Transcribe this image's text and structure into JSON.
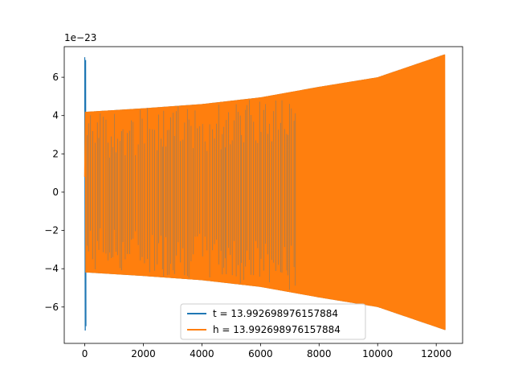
{
  "chart_data": {
    "type": "line",
    "title": "",
    "xlabel": "",
    "ylabel": "",
    "y_offset_label": "1e−23",
    "xlim": [
      -700,
      12900
    ],
    "ylim": [
      -7.9,
      7.6
    ],
    "x_ticks": [
      0,
      2000,
      4000,
      6000,
      8000,
      10000,
      12000
    ],
    "x_tick_labels": [
      "0",
      "2000",
      "4000",
      "6000",
      "8000",
      "10000",
      "12000"
    ],
    "y_ticks": [
      -6,
      -4,
      -2,
      0,
      2,
      4,
      6
    ],
    "y_tick_labels": [
      "−6",
      "−4",
      "−2",
      "0",
      "2",
      "4",
      "6"
    ],
    "grid": false,
    "legend_position": "lower center",
    "series": [
      {
        "name": "t = 13.992698976157884",
        "color": "#1f77b4",
        "x_range": [
          0,
          12300
        ],
        "envelope": {
          "x": [
            0,
            100,
            2000,
            4000,
            6000,
            8000,
            10000,
            12300
          ],
          "amplitude": [
            4.2,
            4.2,
            4.38,
            4.6,
            4.95,
            5.5,
            6.0,
            7.2
          ]
        },
        "initial_spike": {
          "x": [
            0,
            30
          ],
          "max": 7.05,
          "min": -7.2
        }
      },
      {
        "name": "h = 13.992698976157884",
        "color": "#ff7f0e",
        "x_range": [
          0,
          12300
        ],
        "envelope": {
          "x": [
            0,
            100,
            2000,
            4000,
            6000,
            8000,
            10000,
            12300
          ],
          "amplitude": [
            4.2,
            4.2,
            4.38,
            4.6,
            4.95,
            5.5,
            6.0,
            7.2
          ]
        }
      }
    ]
  }
}
